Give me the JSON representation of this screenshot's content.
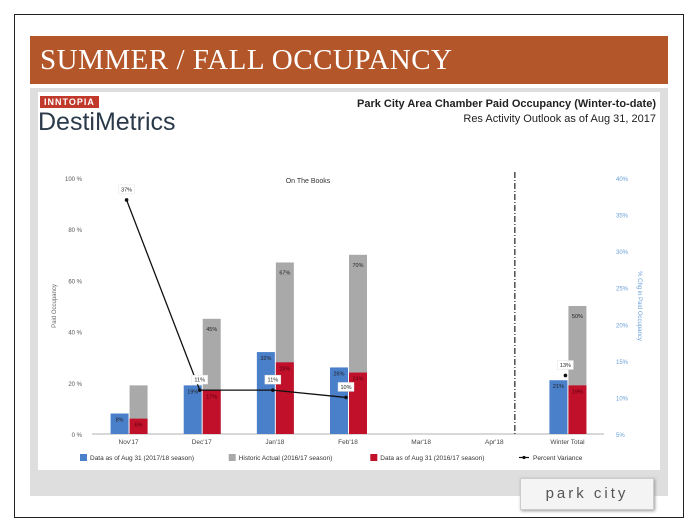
{
  "slide": {
    "title": "SUMMER / FALL OCCUPANCY",
    "brand_small": "INNTOPIA",
    "brand_name": "DestiMetrics",
    "footer_logo": "park city"
  },
  "chart_data": {
    "type": "bar",
    "title": "Park City Area Chamber Paid Occupancy (Winter-to-date)",
    "subtitle": "Res Activity Outlook as of Aug 31, 2017",
    "annotation": "On The Books",
    "ylabel": "Paid Occupancy",
    "y2label": "% Chg in Paid Occupancy",
    "ylim": [
      0,
      100
    ],
    "y2lim": [
      5,
      40
    ],
    "y_ticks": [
      "0 %",
      "20 %",
      "40 %",
      "60 %",
      "80 %",
      "100 %"
    ],
    "y2_ticks": [
      "5%",
      "10%",
      "15%",
      "20%",
      "25%",
      "30%",
      "35%",
      "40%"
    ],
    "categories": [
      "Nov'17",
      "Dec'17",
      "Jan'18",
      "Feb'18",
      "Mar'18",
      "Apr'18",
      "Winter Total"
    ],
    "series": [
      {
        "name": "Data as of Aug 31 (2017/18 season)",
        "color": "#4a7fc9",
        "values": [
          8,
          19,
          32,
          26,
          null,
          null,
          21
        ],
        "labels": [
          "8%",
          "19%",
          "32%",
          "26%",
          "",
          "",
          "21%"
        ]
      },
      {
        "name": "Historic Actual (2016/17 season)",
        "color": "#a9a9a9",
        "values": [
          19,
          45,
          67,
          70,
          null,
          null,
          50
        ],
        "labels": [
          "",
          "45%",
          "67%",
          "70%",
          "",
          "",
          "50%"
        ]
      },
      {
        "name": "Data as of Aug 31 (2016/17 season)",
        "color": "#c0102a",
        "values": [
          6,
          17,
          28,
          24,
          null,
          null,
          19
        ],
        "labels": [
          "6%",
          "17%",
          "28%",
          "24%",
          "",
          "",
          "19%"
        ]
      }
    ],
    "variance": {
      "name": "Percent Variance",
      "values": [
        37,
        11,
        11,
        10,
        null,
        null,
        13
      ],
      "labels": [
        "37%",
        "11%",
        "11%",
        "10%",
        "",
        "",
        "13%"
      ]
    },
    "divider_after": "Apr'18"
  }
}
